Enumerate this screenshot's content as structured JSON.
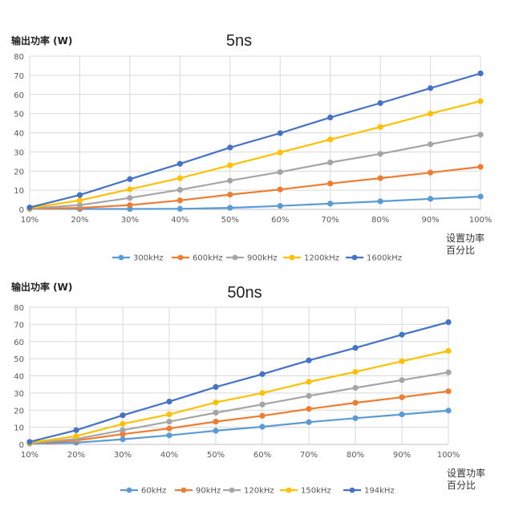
{
  "chart_data": [
    {
      "type": "line",
      "title": "5ns",
      "ylabel": "输出功率 (W)",
      "xlabel_line1": "设置功率",
      "xlabel_line2": "百分比",
      "categories": [
        "10%",
        "20%",
        "30%",
        "40%",
        "50%",
        "60%",
        "70%",
        "80%",
        "90%",
        "100%"
      ],
      "ylim": [
        0,
        80
      ],
      "yticks": [
        "0",
        "10",
        "20",
        "30",
        "40",
        "50",
        "60",
        "70",
        "80"
      ],
      "grid": true,
      "legend": "bottom",
      "series": [
        {
          "name": "300kHz",
          "color": "#5B9BD5",
          "values": [
            0.3,
            0.2,
            0.2,
            0.3,
            0.8,
            1.8,
            3.0,
            4.2,
            5.5,
            6.7
          ]
        },
        {
          "name": "600kHz",
          "color": "#ED7D31",
          "values": [
            0.3,
            0.8,
            2.2,
            4.7,
            7.7,
            10.4,
            13.5,
            16.3,
            19.2,
            22.2
          ]
        },
        {
          "name": "900kHz",
          "color": "#A5A5A5",
          "values": [
            0.5,
            2.2,
            6.0,
            10.2,
            15.0,
            19.5,
            24.5,
            29.0,
            34.0,
            39.0
          ]
        },
        {
          "name": "1200kHz",
          "color": "#FFC000",
          "values": [
            0.7,
            4.7,
            10.5,
            16.3,
            23.0,
            29.7,
            36.5,
            43.0,
            50.0,
            56.5
          ]
        },
        {
          "name": "1600kHz",
          "color": "#4472C4",
          "values": [
            1.0,
            7.5,
            15.8,
            23.8,
            32.3,
            39.8,
            48.0,
            55.5,
            63.3,
            71.0
          ]
        }
      ]
    },
    {
      "type": "line",
      "title": "50ns",
      "ylabel": "输出功率 (W)",
      "xlabel_line1": "设置功率",
      "xlabel_line2": "百分比",
      "categories": [
        "10%",
        "20%",
        "30%",
        "40%",
        "50%",
        "60%",
        "70%",
        "80%",
        "90%",
        "100%"
      ],
      "ylim": [
        0,
        80
      ],
      "yticks": [
        "0",
        "10",
        "20",
        "30",
        "40",
        "50",
        "60",
        "70",
        "80"
      ],
      "grid": true,
      "legend": "bottom",
      "series": [
        {
          "name": "60kHz",
          "color": "#5B9BD5",
          "values": [
            0.5,
            1.0,
            3.0,
            5.3,
            8.0,
            10.3,
            13.0,
            15.3,
            17.5,
            19.7
          ]
        },
        {
          "name": "90kHz",
          "color": "#ED7D31",
          "values": [
            0.7,
            2.3,
            6.0,
            9.3,
            13.3,
            16.7,
            20.7,
            24.3,
            27.5,
            31.0
          ]
        },
        {
          "name": "120kHz",
          "color": "#A5A5A5",
          "values": [
            0.8,
            3.2,
            8.3,
            13.3,
            18.5,
            23.3,
            28.3,
            33.0,
            37.5,
            42.0
          ]
        },
        {
          "name": "150kHz",
          "color": "#FFC000",
          "values": [
            1.0,
            4.8,
            12.0,
            17.5,
            24.5,
            30.0,
            36.5,
            42.3,
            48.5,
            54.5
          ]
        },
        {
          "name": "194kHz",
          "color": "#4472C4",
          "values": [
            1.5,
            8.3,
            17.0,
            25.0,
            33.5,
            41.0,
            49.0,
            56.3,
            64.0,
            71.3
          ]
        }
      ]
    }
  ]
}
